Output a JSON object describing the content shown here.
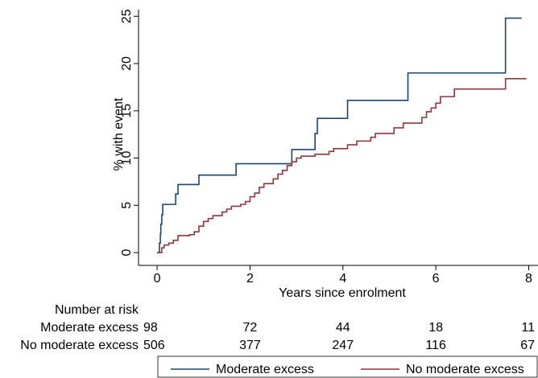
{
  "chart_data": {
    "type": "step",
    "y_label": "% with event",
    "x_label": "Years since enrolment",
    "xlim": [
      -0.4,
      8.2
    ],
    "ylim": [
      -1.1,
      25.7
    ],
    "xticks": [
      0,
      2,
      4,
      6,
      8
    ],
    "yticks": [
      0,
      5,
      10,
      15,
      20,
      25
    ],
    "grid": false,
    "series": [
      {
        "name": "Moderate excess",
        "color": "#1a476f",
        "x": [
          0,
          0.05,
          0.07,
          0.08,
          0.1,
          0.12,
          0.4,
          0.45,
          0.9,
          1.7,
          2.9,
          3.4,
          3.45,
          4.1,
          5.4,
          7.5,
          7.85
        ],
        "values": [
          0,
          1,
          2,
          3,
          4,
          5.1,
          6.2,
          7.2,
          8.2,
          9.4,
          10.9,
          12.6,
          14.2,
          16.1,
          19,
          24.8,
          24.8
        ]
      },
      {
        "name": "No moderate excess",
        "color": "#90353b",
        "x": [
          0,
          0.1,
          0.15,
          0.25,
          0.35,
          0.45,
          0.7,
          0.8,
          0.9,
          1.0,
          1.1,
          1.2,
          1.4,
          1.5,
          1.6,
          1.8,
          1.9,
          2.0,
          2.1,
          2.2,
          2.3,
          2.5,
          2.6,
          2.7,
          2.8,
          2.9,
          3.0,
          3.1,
          3.4,
          3.7,
          3.8,
          4.1,
          4.3,
          4.6,
          4.7,
          5.1,
          5.3,
          5.7,
          5.8,
          5.9,
          6.0,
          6.1,
          6.4,
          7.5,
          7.95
        ],
        "values": [
          0,
          0.5,
          0.8,
          1.0,
          1.3,
          1.8,
          1.9,
          2.2,
          2.8,
          3.3,
          3.6,
          3.9,
          4.3,
          4.6,
          4.9,
          5.1,
          5.4,
          5.9,
          6.3,
          6.9,
          7.3,
          7.8,
          8.3,
          8.7,
          9.2,
          9.6,
          10.0,
          10.2,
          10.4,
          10.7,
          11.0,
          11.4,
          11.8,
          12.2,
          12.6,
          13.2,
          13.7,
          14.3,
          14.9,
          15.3,
          15.8,
          16.5,
          17.3,
          18.4,
          18.4
        ]
      }
    ],
    "risk_table": {
      "title": "Number at risk",
      "rows": [
        {
          "label": "Moderate excess",
          "values": [
            98,
            72,
            44,
            18,
            11
          ]
        },
        {
          "label": "No moderate excess",
          "values": [
            506,
            377,
            247,
            116,
            67
          ]
        }
      ]
    }
  }
}
